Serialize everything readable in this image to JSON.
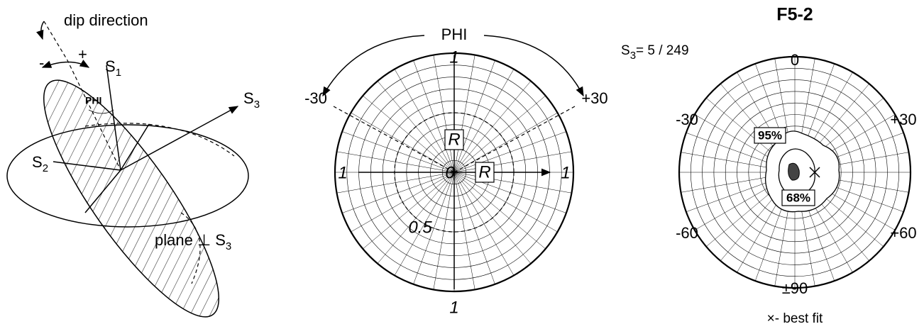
{
  "left": {
    "dip_direction": "dip direction",
    "plus": "+",
    "minus": "-",
    "s1": {
      "base": "S",
      "sub": "1"
    },
    "phi": "PHI",
    "s3": {
      "base": "S",
      "sub": "3"
    },
    "s2": {
      "base": "S",
      "sub": "2"
    },
    "plane": {
      "base": "plane ⊥ S",
      "sub": "3"
    }
  },
  "middle": {
    "phi": "PHI",
    "top": "1",
    "left": "1",
    "right": "1",
    "bottom": "1",
    "minus30": "-30",
    "plus30": "+30",
    "r_vertical": "R",
    "r_horizontal": "R",
    "center": "0",
    "half": "0.5"
  },
  "right": {
    "title": "F5-2",
    "s3": {
      "base": "S",
      "sub": "3",
      "text": "=  5 / 249"
    },
    "top": "0",
    "minus30": "-30",
    "plus30": "+30",
    "minus60": "-60",
    "plus60": "+60",
    "bottom": "±90",
    "c95": "95%",
    "c68": "68%",
    "legend": "×- best fit"
  }
}
